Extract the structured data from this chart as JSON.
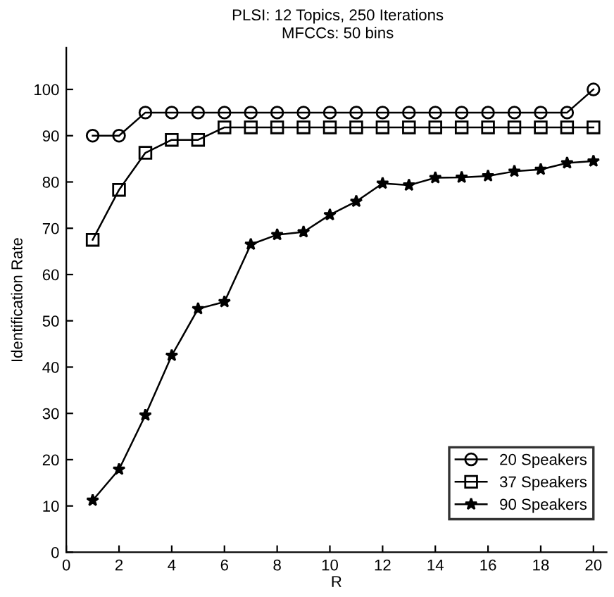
{
  "chart_data": {
    "type": "line",
    "title": "PLSI: 12 Topics, 250 Iterations",
    "subtitle": "MFCCs: 50 bins",
    "xlabel": "R",
    "ylabel": "Identification Rate",
    "x": [
      1,
      2,
      3,
      4,
      5,
      6,
      7,
      8,
      9,
      10,
      11,
      12,
      13,
      14,
      15,
      16,
      17,
      18,
      19,
      20
    ],
    "series": [
      {
        "name": "20 Speakers",
        "color": "#000000",
        "marker": "circle",
        "values": [
          90,
          90,
          95,
          95,
          95,
          95,
          95,
          95,
          95,
          95,
          95,
          95,
          95,
          95,
          95,
          95,
          95,
          95,
          95,
          100
        ]
      },
      {
        "name": "37 Speakers",
        "color": "#000000",
        "marker": "square",
        "values": [
          67.5,
          78.3,
          86.3,
          89.1,
          89.1,
          91.8,
          91.8,
          91.8,
          91.8,
          91.8,
          91.8,
          91.8,
          91.8,
          91.8,
          91.8,
          91.8,
          91.8,
          91.8,
          91.8,
          91.8
        ]
      },
      {
        "name": "90 Speakers",
        "color": "#000000",
        "marker": "star",
        "values": [
          11.2,
          17.9,
          29.6,
          42.5,
          52.6,
          54.1,
          66.5,
          68.6,
          69.2,
          72.9,
          75.8,
          79.7,
          79.3,
          80.9,
          81.0,
          81.3,
          82.3,
          82.7,
          84.1,
          84.5
        ]
      }
    ],
    "xlim": [
      0,
      20.5
    ],
    "ylim": [
      0,
      109
    ],
    "xticks": [
      0,
      2,
      4,
      6,
      8,
      10,
      12,
      14,
      16,
      18,
      20
    ],
    "yticks": [
      0,
      10,
      20,
      30,
      40,
      50,
      60,
      70,
      80,
      90,
      100
    ],
    "grid": false,
    "legend": "bottom right",
    "line_style": "solid"
  }
}
